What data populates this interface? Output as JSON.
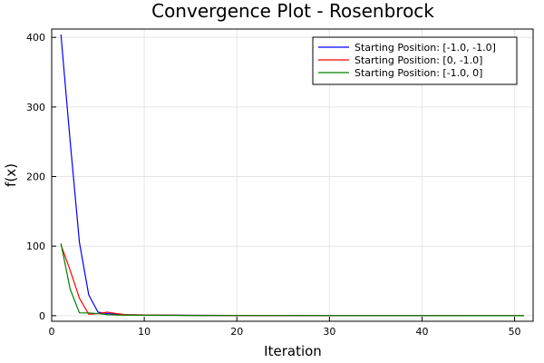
{
  "chart_data": {
    "type": "line",
    "title": "Convergence Plot - Rosenbrock",
    "xlabel": "Iteration",
    "ylabel": "f(x)",
    "xlim": [
      0,
      52
    ],
    "ylim": [
      -8,
      412
    ],
    "xticks": [
      0,
      10,
      20,
      30,
      40,
      50
    ],
    "yticks": [
      0,
      100,
      200,
      300,
      400
    ],
    "grid": true,
    "legend_position": "top-right",
    "series": [
      {
        "name": "Starting Position: [-1.0, -1.0]",
        "color": "#0000ff",
        "x": [
          1,
          2,
          3,
          4,
          5,
          6,
          7,
          8,
          9,
          10,
          12,
          15,
          20,
          30,
          40,
          51
        ],
        "y": [
          404,
          250,
          105,
          30,
          5,
          3,
          2,
          1.5,
          1.2,
          1.0,
          0.8,
          0.5,
          0.3,
          0.1,
          0.05,
          0.02
        ]
      },
      {
        "name": "Starting Position: [0, -1.0]",
        "color": "#ff0000",
        "x": [
          1,
          2,
          3,
          4,
          5,
          6,
          7,
          8,
          10,
          12,
          15,
          20,
          30,
          40,
          51
        ],
        "y": [
          102,
          65,
          25,
          2,
          3,
          5,
          3,
          1.5,
          1.0,
          0.8,
          0.5,
          0.3,
          0.1,
          0.05,
          0.02
        ]
      },
      {
        "name": "Starting Position: [-1.0, 0]",
        "color": "#008000",
        "x": [
          1,
          2,
          3,
          4,
          5,
          6,
          7,
          8,
          10,
          12,
          15,
          20,
          30,
          40,
          51
        ],
        "y": [
          104,
          38,
          4,
          4,
          3,
          1.5,
          1.0,
          0.8,
          0.6,
          0.5,
          0.3,
          0.2,
          0.1,
          0.05,
          0.02
        ]
      }
    ]
  }
}
